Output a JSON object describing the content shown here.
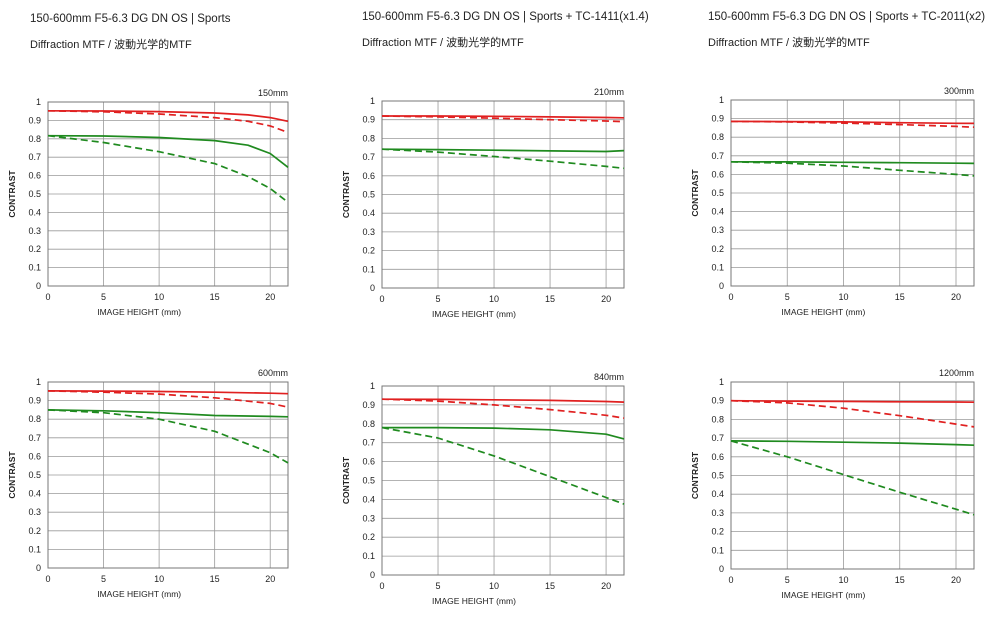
{
  "headers": [
    {
      "lens": "150-600mm F5-6.3 DG DN OS | Sports",
      "subtitle": "Diffraction MTF / 波動光学的MTF"
    },
    {
      "lens": "150-600mm F5-6.3 DG DN OS | Sports + TC-1411(x1.4)",
      "subtitle": "Diffraction MTF / 波動光学的MTF"
    },
    {
      "lens": "150-600mm F5-6.3 DG DN OS | Sports + TC-2011(x2)",
      "subtitle": "Diffraction MTF / 波動光学的MTF"
    }
  ],
  "colors": {
    "red": "#e02020",
    "green": "#1f8a1f",
    "grid": "#9a9a9a",
    "frame": "#777777"
  },
  "chart_data": [
    {
      "type": "line",
      "title": "150mm",
      "xlabel": "IMAGE HEIGHT (mm)",
      "ylabel": "CONTRAST",
      "xlim": [
        0,
        21.6
      ],
      "ylim": [
        0,
        1
      ],
      "xticks": [
        0,
        5,
        10,
        15,
        20
      ],
      "yticks": [
        0,
        0.1,
        0.2,
        0.3,
        0.4,
        0.5,
        0.6,
        0.7,
        0.8,
        0.9,
        1
      ],
      "grid": true,
      "series": [
        {
          "color": "red",
          "style": "solid",
          "x": [
            0,
            5,
            10,
            15,
            18,
            20,
            21.6
          ],
          "y": [
            0.952,
            0.951,
            0.948,
            0.94,
            0.93,
            0.915,
            0.895
          ]
        },
        {
          "color": "red",
          "style": "dashed",
          "x": [
            0,
            5,
            10,
            15,
            18,
            20,
            21.6
          ],
          "y": [
            0.952,
            0.947,
            0.935,
            0.915,
            0.895,
            0.87,
            0.835
          ]
        },
        {
          "color": "green",
          "style": "solid",
          "x": [
            0,
            5,
            10,
            15,
            18,
            20,
            21.6
          ],
          "y": [
            0.817,
            0.815,
            0.807,
            0.79,
            0.765,
            0.72,
            0.645
          ]
        },
        {
          "color": "green",
          "style": "dashed",
          "x": [
            0,
            5,
            10,
            15,
            18,
            20,
            21.6
          ],
          "y": [
            0.817,
            0.78,
            0.73,
            0.665,
            0.595,
            0.53,
            0.455
          ]
        }
      ]
    },
    {
      "type": "line",
      "title": "210mm",
      "xlabel": "IMAGE HEIGHT (mm)",
      "ylabel": "CONTRAST",
      "xlim": [
        0,
        21.6
      ],
      "ylim": [
        0,
        1
      ],
      "xticks": [
        0,
        5,
        10,
        15,
        20
      ],
      "yticks": [
        0,
        0.1,
        0.2,
        0.3,
        0.4,
        0.5,
        0.6,
        0.7,
        0.8,
        0.9,
        1
      ],
      "grid": true,
      "series": [
        {
          "color": "red",
          "style": "solid",
          "x": [
            0,
            5,
            10,
            15,
            20,
            21.6
          ],
          "y": [
            0.92,
            0.92,
            0.918,
            0.915,
            0.912,
            0.91
          ]
        },
        {
          "color": "red",
          "style": "dashed",
          "x": [
            0,
            5,
            10,
            15,
            20,
            21.6
          ],
          "y": [
            0.92,
            0.915,
            0.908,
            0.9,
            0.893,
            0.89
          ]
        },
        {
          "color": "green",
          "style": "solid",
          "x": [
            0,
            5,
            10,
            15,
            20,
            21.6
          ],
          "y": [
            0.742,
            0.74,
            0.737,
            0.733,
            0.73,
            0.735
          ]
        },
        {
          "color": "green",
          "style": "dashed",
          "x": [
            0,
            5,
            10,
            15,
            20,
            21.6
          ],
          "y": [
            0.742,
            0.727,
            0.703,
            0.678,
            0.65,
            0.64
          ]
        }
      ]
    },
    {
      "type": "line",
      "title": "300mm",
      "xlabel": "IMAGE HEIGHT (mm)",
      "ylabel": "CONTRAST",
      "xlim": [
        0,
        21.6
      ],
      "ylim": [
        0,
        1
      ],
      "xticks": [
        0,
        5,
        10,
        15,
        20
      ],
      "yticks": [
        0,
        0.1,
        0.2,
        0.3,
        0.4,
        0.5,
        0.6,
        0.7,
        0.8,
        0.9,
        1
      ],
      "grid": true,
      "series": [
        {
          "color": "red",
          "style": "solid",
          "x": [
            0,
            5,
            10,
            15,
            20,
            21.6
          ],
          "y": [
            0.885,
            0.884,
            0.882,
            0.878,
            0.875,
            0.874
          ]
        },
        {
          "color": "red",
          "style": "dashed",
          "x": [
            0,
            5,
            10,
            15,
            20,
            21.6
          ],
          "y": [
            0.885,
            0.882,
            0.876,
            0.868,
            0.858,
            0.854
          ]
        },
        {
          "color": "green",
          "style": "solid",
          "x": [
            0,
            5,
            10,
            15,
            20,
            21.6
          ],
          "y": [
            0.668,
            0.667,
            0.665,
            0.663,
            0.66,
            0.659
          ]
        },
        {
          "color": "green",
          "style": "dashed",
          "x": [
            0,
            5,
            10,
            15,
            20,
            21.6
          ],
          "y": [
            0.668,
            0.66,
            0.645,
            0.622,
            0.6,
            0.592
          ]
        }
      ]
    },
    {
      "type": "line",
      "title": "600mm",
      "xlabel": "IMAGE HEIGHT (mm)",
      "ylabel": "CONTRAST",
      "xlim": [
        0,
        21.6
      ],
      "ylim": [
        0,
        1
      ],
      "xticks": [
        0,
        5,
        10,
        15,
        20
      ],
      "yticks": [
        0,
        0.1,
        0.2,
        0.3,
        0.4,
        0.5,
        0.6,
        0.7,
        0.8,
        0.9,
        1
      ],
      "grid": true,
      "series": [
        {
          "color": "red",
          "style": "solid",
          "x": [
            0,
            5,
            10,
            15,
            20,
            21.6
          ],
          "y": [
            0.952,
            0.951,
            0.949,
            0.945,
            0.94,
            0.937
          ]
        },
        {
          "color": "red",
          "style": "dashed",
          "x": [
            0,
            5,
            10,
            15,
            20,
            21.6
          ],
          "y": [
            0.952,
            0.945,
            0.935,
            0.915,
            0.885,
            0.865
          ]
        },
        {
          "color": "green",
          "style": "solid",
          "x": [
            0,
            5,
            10,
            15,
            20,
            21.6
          ],
          "y": [
            0.85,
            0.845,
            0.835,
            0.82,
            0.815,
            0.813
          ]
        },
        {
          "color": "green",
          "style": "dashed",
          "x": [
            0,
            5,
            10,
            15,
            20,
            21.6
          ],
          "y": [
            0.85,
            0.835,
            0.8,
            0.735,
            0.62,
            0.565
          ]
        }
      ]
    },
    {
      "type": "line",
      "title": "840mm",
      "xlabel": "IMAGE HEIGHT (mm)",
      "ylabel": "CONTRAST",
      "xlim": [
        0,
        21.6
      ],
      "ylim": [
        0,
        1
      ],
      "xticks": [
        0,
        5,
        10,
        15,
        20
      ],
      "yticks": [
        0,
        0.1,
        0.2,
        0.3,
        0.4,
        0.5,
        0.6,
        0.7,
        0.8,
        0.9,
        1
      ],
      "grid": true,
      "series": [
        {
          "color": "red",
          "style": "solid",
          "x": [
            0,
            5,
            10,
            15,
            20,
            21.6
          ],
          "y": [
            0.93,
            0.929,
            0.927,
            0.924,
            0.918,
            0.915
          ]
        },
        {
          "color": "red",
          "style": "dashed",
          "x": [
            0,
            5,
            10,
            15,
            20,
            21.6
          ],
          "y": [
            0.93,
            0.92,
            0.9,
            0.875,
            0.845,
            0.83
          ]
        },
        {
          "color": "green",
          "style": "solid",
          "x": [
            0,
            5,
            10,
            15,
            20,
            21.6
          ],
          "y": [
            0.78,
            0.78,
            0.777,
            0.768,
            0.745,
            0.72
          ]
        },
        {
          "color": "green",
          "style": "dashed",
          "x": [
            0,
            5,
            10,
            15,
            20,
            21.6
          ],
          "y": [
            0.78,
            0.725,
            0.63,
            0.52,
            0.41,
            0.375
          ]
        }
      ]
    },
    {
      "type": "line",
      "title": "1200mm",
      "xlabel": "IMAGE HEIGHT (mm)",
      "ylabel": "CONTRAST",
      "xlim": [
        0,
        21.6
      ],
      "ylim": [
        0,
        1
      ],
      "xticks": [
        0,
        5,
        10,
        15,
        20
      ],
      "yticks": [
        0,
        0.1,
        0.2,
        0.3,
        0.4,
        0.5,
        0.6,
        0.7,
        0.8,
        0.9,
        1
      ],
      "grid": true,
      "series": [
        {
          "color": "red",
          "style": "solid",
          "x": [
            0,
            5,
            10,
            15,
            20,
            21.6
          ],
          "y": [
            0.9,
            0.898,
            0.896,
            0.894,
            0.893,
            0.892
          ]
        },
        {
          "color": "red",
          "style": "dashed",
          "x": [
            0,
            5,
            10,
            15,
            20,
            21.6
          ],
          "y": [
            0.9,
            0.888,
            0.86,
            0.82,
            0.775,
            0.76
          ]
        },
        {
          "color": "green",
          "style": "solid",
          "x": [
            0,
            5,
            10,
            15,
            20,
            21.6
          ],
          "y": [
            0.685,
            0.683,
            0.678,
            0.673,
            0.665,
            0.662
          ]
        },
        {
          "color": "green",
          "style": "dashed",
          "x": [
            0,
            5,
            10,
            15,
            20,
            21.6
          ],
          "y": [
            0.685,
            0.6,
            0.505,
            0.41,
            0.32,
            0.29
          ]
        }
      ]
    }
  ]
}
